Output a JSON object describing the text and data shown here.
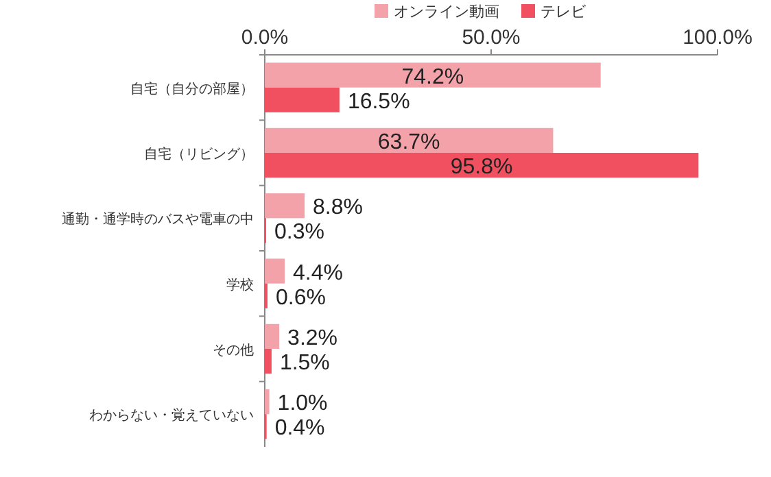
{
  "chart_data": {
    "type": "bar",
    "orientation": "horizontal",
    "legend": "top",
    "categories": [
      "自宅（自分の部屋）",
      "自宅（リビング）",
      "通勤・通学時のバスや電車の中",
      "学校",
      "その他",
      "わからない・覚えていない"
    ],
    "series": [
      {
        "name": "オンライン動画",
        "color": "#f4a2aa",
        "values": [
          74.2,
          63.7,
          8.8,
          4.4,
          3.2,
          1.0
        ],
        "value_labels": [
          "74.2%",
          "63.7%",
          "8.8%",
          "4.4%",
          "3.2%",
          "1.0%"
        ]
      },
      {
        "name": "テレビ",
        "color": "#f0505f",
        "values": [
          16.5,
          95.8,
          0.3,
          0.6,
          1.5,
          0.4
        ],
        "value_labels": [
          "16.5%",
          "95.8%",
          "0.3%",
          "0.6%",
          "1.5%",
          "0.4%"
        ]
      }
    ],
    "xlim": [
      0,
      100
    ],
    "xticks": [
      {
        "value": 0,
        "label": "0.0%"
      },
      {
        "value": 50,
        "label": "50.0%"
      },
      {
        "value": 100,
        "label": "100.0%"
      }
    ]
  }
}
